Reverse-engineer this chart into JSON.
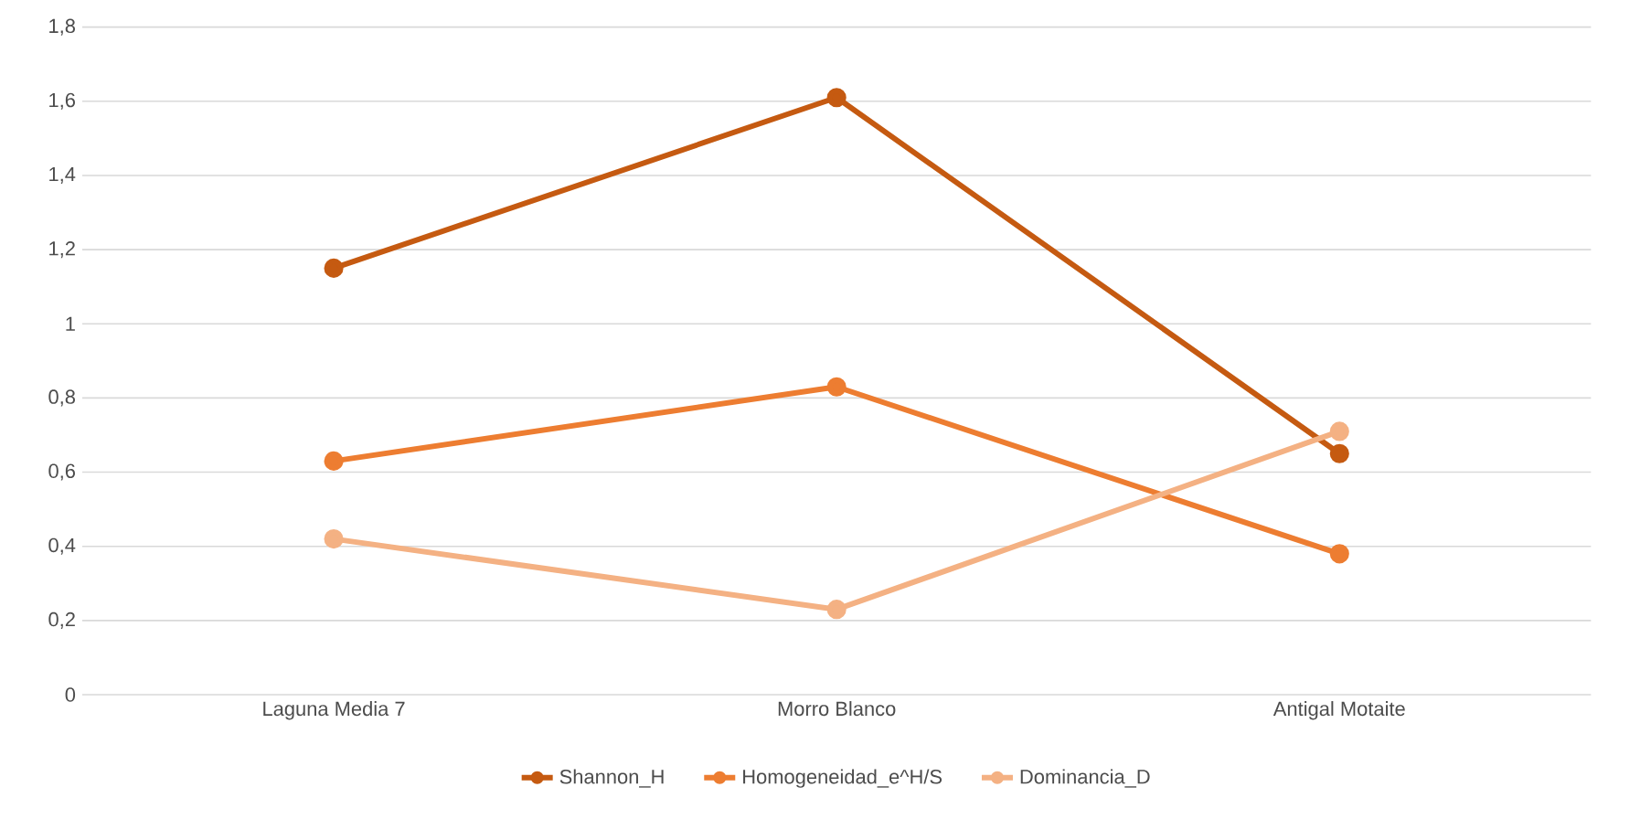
{
  "chart_data": {
    "type": "line",
    "categories": [
      "Laguna Media 7",
      "Morro Blanco",
      "Antigal Motaite"
    ],
    "series": [
      {
        "name": "Shannon_H",
        "color": "#c55a11",
        "values": [
          1.15,
          1.61,
          0.65
        ]
      },
      {
        "name": "Homogeneidad_e^H/S",
        "color": "#ed7d31",
        "values": [
          0.63,
          0.83,
          0.38
        ]
      },
      {
        "name": "Dominancia_D",
        "color": "#f4b183",
        "values": [
          0.42,
          0.23,
          0.71
        ]
      }
    ],
    "ylim": [
      0,
      1.8
    ],
    "yticks": [
      {
        "value": 0,
        "label": "0"
      },
      {
        "value": 0.2,
        "label": "0,2"
      },
      {
        "value": 0.4,
        "label": "0,4"
      },
      {
        "value": 0.6,
        "label": "0,6"
      },
      {
        "value": 0.8,
        "label": "0,8"
      },
      {
        "value": 1,
        "label": "1"
      },
      {
        "value": 1.2,
        "label": "1,2"
      },
      {
        "value": 1.4,
        "label": "1,4"
      },
      {
        "value": 1.6,
        "label": "1,6"
      },
      {
        "value": 1.8,
        "label": "1,8"
      }
    ],
    "grid": "y",
    "legend": "bottom",
    "marker": "circle",
    "line_style": "solid"
  }
}
